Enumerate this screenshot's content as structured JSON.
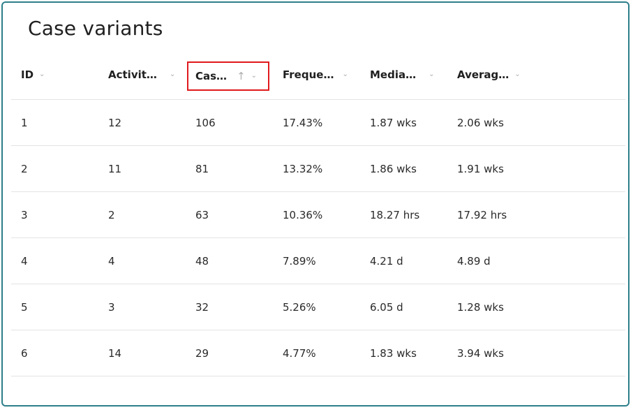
{
  "panel": {
    "title": "Case variants"
  },
  "table": {
    "columns": [
      {
        "label": "ID",
        "menu_icon": "chevron-down-icon"
      },
      {
        "label": "Activit…",
        "menu_icon": "chevron-down-icon"
      },
      {
        "label": "Cas…",
        "sort_icon": "arrow-up-icon",
        "menu_icon": "chevron-down-icon",
        "highlighted": true
      },
      {
        "label": "Freque…",
        "menu_icon": "chevron-down-icon"
      },
      {
        "label": "Media…",
        "menu_icon": "chevron-down-icon"
      },
      {
        "label": "Averag…",
        "menu_icon": "chevron-down-icon"
      }
    ],
    "rows": [
      [
        "1",
        "12",
        "106",
        "17.43%",
        "1.87 wks",
        "2.06 wks"
      ],
      [
        "2",
        "11",
        "81",
        "13.32%",
        "1.86 wks",
        "1.91 wks"
      ],
      [
        "3",
        "2",
        "63",
        "10.36%",
        "18.27 hrs",
        "17.92 hrs"
      ],
      [
        "4",
        "4",
        "48",
        "7.89%",
        "4.21 d",
        "4.89 d"
      ],
      [
        "5",
        "3",
        "32",
        "5.26%",
        "6.05 d",
        "1.28 wks"
      ],
      [
        "6",
        "14",
        "29",
        "4.77%",
        "1.83 wks",
        "3.94 wks"
      ]
    ]
  },
  "colors": {
    "panel_border": "#2d7f8a",
    "highlight_border": "#e0191d",
    "row_divider": "#e3e3e3"
  }
}
